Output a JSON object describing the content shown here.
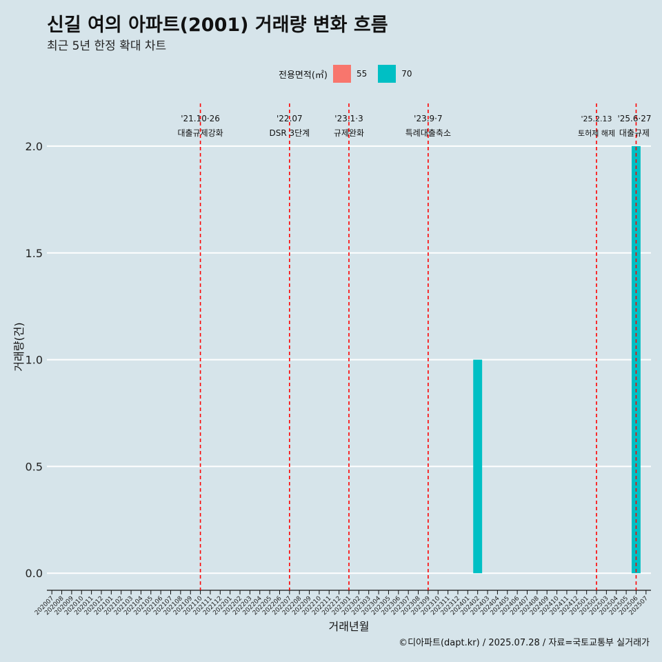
{
  "title": "신길 여의 아파트(2001) 거래량 변화 흐름",
  "subtitle": "최근 5년 한정 확대 차트",
  "caption": "©디아파트(dapt.kr) / 2025.07.28 / 자료=국토교통부 실거래가",
  "legend": {
    "title": "전용면적(㎡)",
    "items": [
      {
        "label": "55",
        "color": "#f8766d"
      },
      {
        "label": "70",
        "color": "#00bfc4"
      }
    ]
  },
  "colors": {
    "background": "#d6e4ea",
    "grid": "#ffffff",
    "event_line": "#ff0000"
  },
  "chart_data": {
    "type": "bar",
    "xlabel": "거래년월",
    "ylabel": "거래량(건)",
    "ylim": [
      -0.08,
      2.2
    ],
    "yticks": [
      "0.0",
      "0.5",
      "1.0",
      "1.5",
      "2.0"
    ],
    "categories": [
      "202007",
      "202008",
      "202009",
      "202010",
      "202011",
      "202012",
      "202101",
      "202102",
      "202103",
      "202104",
      "202105",
      "202106",
      "202107",
      "202108",
      "202109",
      "202110",
      "202111",
      "202112",
      "202201",
      "202202",
      "202203",
      "202204",
      "202205",
      "202206",
      "202207",
      "202208",
      "202209",
      "202210",
      "202211",
      "202212",
      "202301",
      "202302",
      "202303",
      "202304",
      "202305",
      "202306",
      "202307",
      "202308",
      "202309",
      "202310",
      "202311",
      "202312",
      "202401",
      "202402",
      "202403",
      "202404",
      "202405",
      "202406",
      "202407",
      "202408",
      "202409",
      "202410",
      "202411",
      "202412",
      "202501",
      "202502",
      "202503",
      "202504",
      "202505",
      "202506",
      "202507"
    ],
    "series": [
      {
        "name": "70",
        "color": "#00bfc4",
        "points": [
          {
            "x": "202402",
            "y": 1
          },
          {
            "x": "202506",
            "y": 2
          }
        ]
      }
    ],
    "events": [
      {
        "x": "202110",
        "date": "'21.10·26",
        "label": "대출규제강화"
      },
      {
        "x": "202207",
        "date": "'22.07",
        "label": "DSR 3단계"
      },
      {
        "x": "202301",
        "date": "'23.1·3",
        "label": "규제완화"
      },
      {
        "x": "202309",
        "date": "'23.9·7",
        "label": "특례대출축소"
      },
      {
        "x": "202502",
        "date": "'25.2.13",
        "label": "토허제 해제"
      },
      {
        "x": "202506",
        "date": "'25.6·27",
        "label": "대출규제"
      }
    ]
  }
}
